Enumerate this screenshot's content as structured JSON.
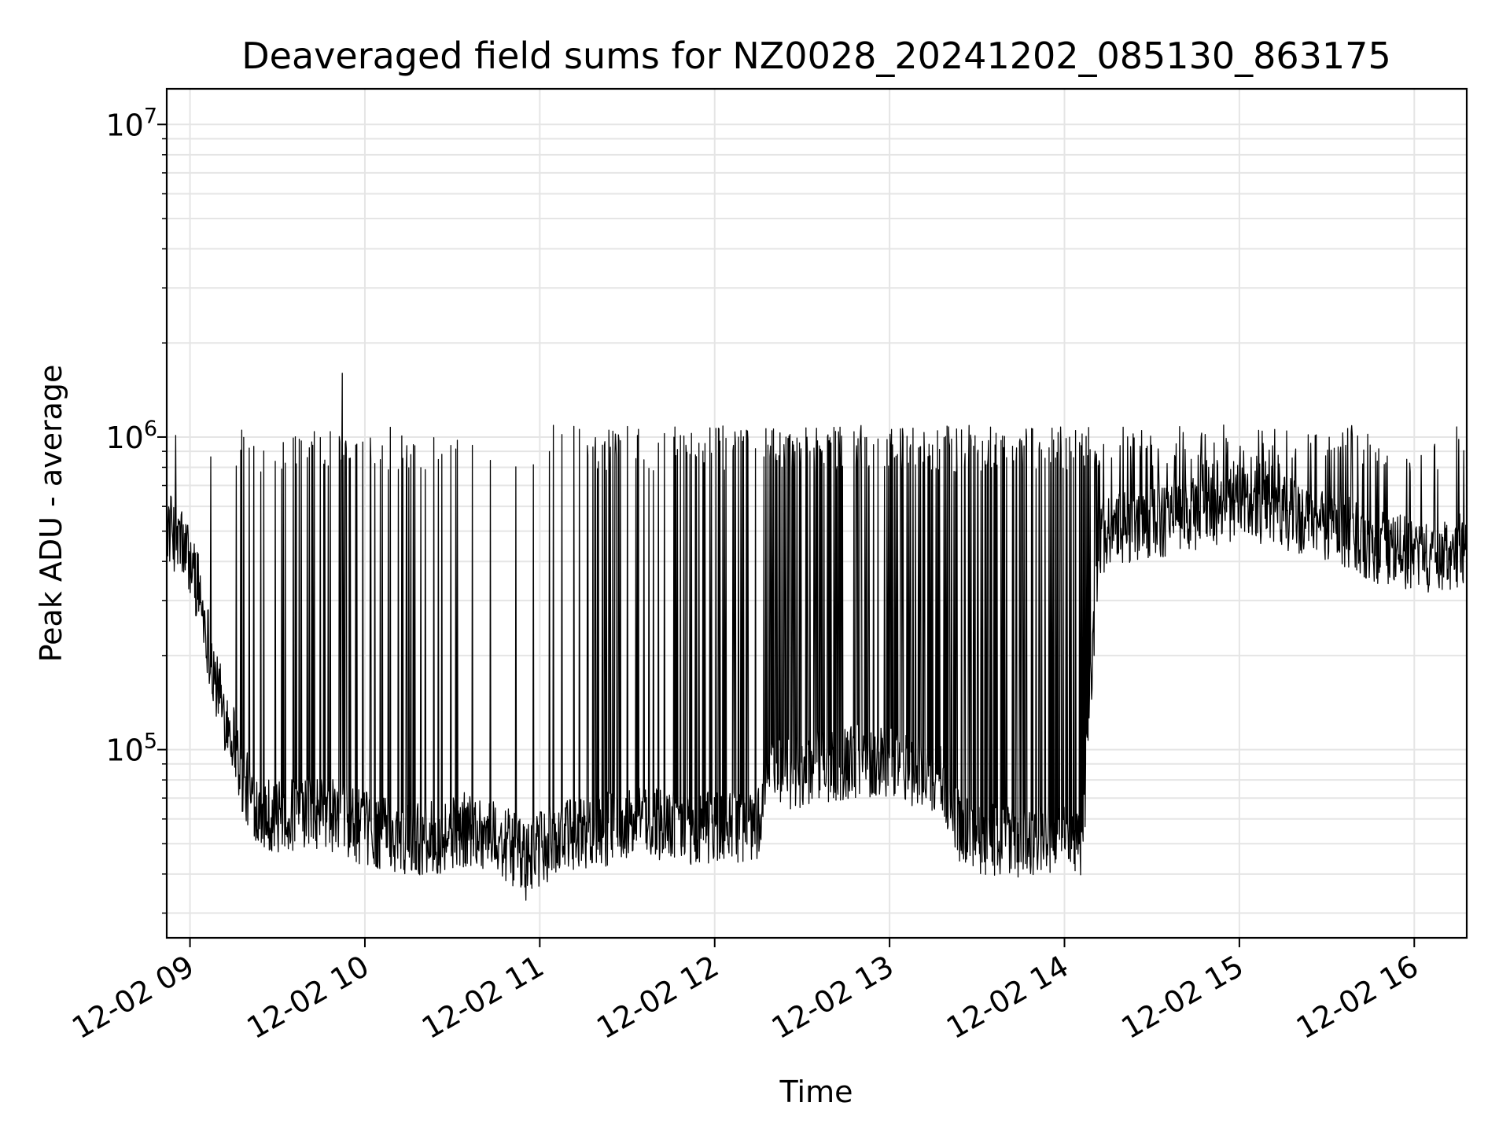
{
  "chart_data": {
    "type": "line",
    "title": "Deaveraged field sums for NZ0028_20241202_085130_863175",
    "xlabel": "Time",
    "ylabel": "Peak ADU - average",
    "x_tick_labels": [
      "12-02 09",
      "12-02 10",
      "12-02 11",
      "12-02 12",
      "12-02 13",
      "12-02 14",
      "12-02 15",
      "12-02 16"
    ],
    "x_tick_hours": [
      9,
      10,
      11,
      12,
      13,
      14,
      15,
      16
    ],
    "xlim_hours": [
      8.867,
      16.3
    ],
    "y_scale": "log",
    "ylim": [
      25000,
      13000000
    ],
    "y_ticks": [
      {
        "value": 100000,
        "base": "10",
        "exp": "5"
      },
      {
        "value": 1000000,
        "base": "10",
        "exp": "6"
      },
      {
        "value": 10000000,
        "base": "10",
        "exp": "7"
      }
    ],
    "grid": true,
    "line_color": "#000000",
    "grid_color": "#e5e5e5",
    "series": [
      {
        "x_hours": [
          8.867,
          8.95,
          9.0,
          9.05,
          9.1,
          9.15,
          9.2,
          9.25,
          9.3,
          9.35,
          9.4,
          9.5,
          9.6,
          9.7,
          9.8,
          9.9,
          10.0,
          10.1,
          10.2,
          10.3,
          10.4,
          10.5,
          10.6,
          10.7,
          10.8,
          10.9,
          10.95,
          11.0,
          11.1,
          11.2,
          11.3,
          11.4,
          11.5,
          11.6,
          11.7,
          11.8,
          11.9,
          12.0,
          12.1,
          12.2,
          12.25,
          12.3,
          12.4,
          12.5,
          12.6,
          12.7,
          12.8,
          12.9,
          13.0,
          13.1,
          13.2,
          13.3,
          13.4,
          13.5,
          13.6,
          13.7,
          13.8,
          13.9,
          14.0,
          14.1,
          14.2,
          14.3,
          14.4,
          14.5,
          14.6,
          14.7,
          14.8,
          14.9,
          15.0,
          15.1,
          15.2,
          15.3,
          15.4,
          15.5,
          15.6,
          15.7,
          15.8,
          15.9,
          16.0,
          16.1,
          16.2,
          16.3
        ],
        "y_baseline": [
          520000,
          460000,
          400000,
          330000,
          230000,
          160000,
          130000,
          110000,
          80000,
          70000,
          65000,
          60000,
          62000,
          63000,
          62000,
          58000,
          56000,
          54000,
          53000,
          52000,
          52000,
          54000,
          56000,
          54000,
          50000,
          46000,
          45000,
          48000,
          52000,
          54000,
          55000,
          56000,
          57000,
          58000,
          58000,
          57000,
          56000,
          56000,
          57000,
          58000,
          58000,
          82000,
          84000,
          86000,
          88000,
          90000,
          92000,
          93000,
          92000,
          88000,
          84000,
          78000,
          56000,
          53000,
          52000,
          51000,
          52000,
          52000,
          51000,
          48000,
          480000,
          500000,
          520000,
          530000,
          540000,
          560000,
          580000,
          600000,
          620000,
          600000,
          580000,
          560000,
          540000,
          520000,
          500000,
          470000,
          440000,
          430000,
          420000,
          410000,
          420000,
          440000
        ],
        "spike_density": [
          0.05,
          0.05,
          0.05,
          0.05,
          0.05,
          0.05,
          0.1,
          0.3,
          0.4,
          0.45,
          0.45,
          0.45,
          0.45,
          0.45,
          0.45,
          0.45,
          0.4,
          0.35,
          0.3,
          0.25,
          0.2,
          0.12,
          0.1,
          0.1,
          0.1,
          0.1,
          0.12,
          0.15,
          0.25,
          0.3,
          0.35,
          0.35,
          0.35,
          0.35,
          0.35,
          0.35,
          0.35,
          0.35,
          0.35,
          0.35,
          0.35,
          0.5,
          0.55,
          0.55,
          0.55,
          0.55,
          0.55,
          0.55,
          0.55,
          0.55,
          0.55,
          0.55,
          0.6,
          0.6,
          0.6,
          0.6,
          0.6,
          0.6,
          0.6,
          0.6,
          0.35,
          0.35,
          0.35,
          0.35,
          0.35,
          0.35,
          0.35,
          0.35,
          0.35,
          0.35,
          0.35,
          0.35,
          0.35,
          0.35,
          0.35,
          0.35,
          0.25,
          0.15,
          0.1,
          0.1,
          0.1,
          0.1
        ],
        "spike_high": 950000,
        "max_value": 1600000,
        "max_at_hour": 9.87,
        "min_value": 33000,
        "min_at_hour": 10.92
      }
    ]
  }
}
